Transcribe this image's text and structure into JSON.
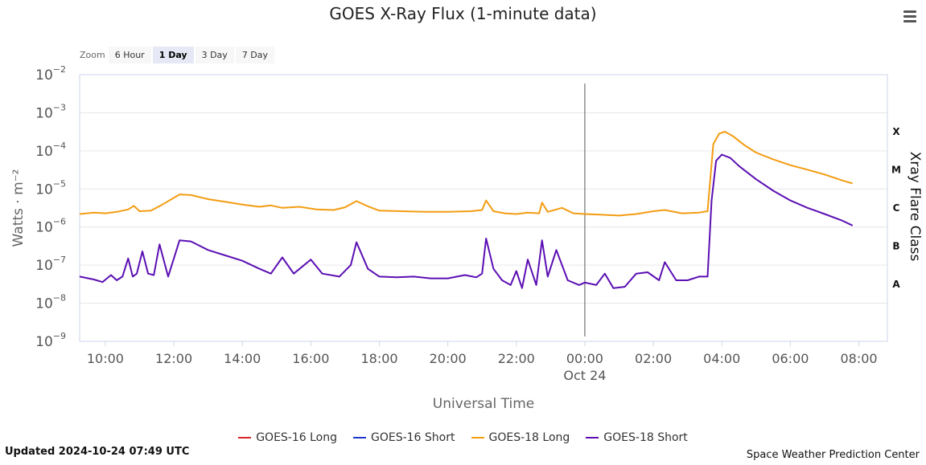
{
  "title": "GOES X-Ray Flux (1-minute data)",
  "menu": {
    "icon": "hamburger-menu-icon"
  },
  "zoom": {
    "label": "Zoom",
    "options": [
      "6 Hour",
      "1 Day",
      "3 Day",
      "7 Day"
    ],
    "selected": "1 Day"
  },
  "updated": "Updated 2024-10-24 07:49 UTC",
  "credit": "Space Weather Prediction Center",
  "chart_data": {
    "type": "line",
    "title": "GOES X-Ray Flux (1-minute data)",
    "xlabel": "Universal Time",
    "ylabel": "Watts · m⁻²",
    "ylabel_right": "Xray Flare Class",
    "yscale": "log",
    "ylim": [
      1e-09,
      0.01
    ],
    "xlim": [
      "2024-10-23 09:15",
      "2024-10-24 08:50"
    ],
    "x_ticks": [
      "10:00",
      "12:00",
      "14:00",
      "16:00",
      "18:00",
      "20:00",
      "22:00",
      "00:00",
      "02:00",
      "04:00",
      "06:00",
      "08:00"
    ],
    "x_tick_date": "Oct 24",
    "y_ticks": [
      {
        "value": 1e-09,
        "base": "10",
        "exp": "−9"
      },
      {
        "value": 1e-08,
        "base": "10",
        "exp": "−8"
      },
      {
        "value": 1e-07,
        "base": "10",
        "exp": "−7"
      },
      {
        "value": 1e-06,
        "base": "10",
        "exp": "−6"
      },
      {
        "value": 1e-05,
        "base": "10",
        "exp": "−5"
      },
      {
        "value": 0.0001,
        "base": "10",
        "exp": "−4"
      },
      {
        "value": 0.001,
        "base": "10",
        "exp": "−3"
      },
      {
        "value": 0.01,
        "base": "10",
        "exp": "−2"
      }
    ],
    "flare_classes": [
      {
        "label": "A",
        "value": 3.16e-08
      },
      {
        "label": "B",
        "value": 3.16e-07
      },
      {
        "label": "C",
        "value": 3.16e-06
      },
      {
        "label": "M",
        "value": 3.16e-05
      },
      {
        "label": "X",
        "value": 0.000316
      }
    ],
    "day_marker": "2024-10-24 00:00",
    "grid": true,
    "legend_position": "bottom",
    "series": [
      {
        "name": "GOES-16 Long",
        "color": "#d62728",
        "x": [],
        "y": []
      },
      {
        "name": "GOES-16 Short",
        "color": "#1f36c9",
        "x": [],
        "y": []
      },
      {
        "name": "GOES-18 Long",
        "color": "#f39c12",
        "x": [
          "2024-10-23 09:15",
          "2024-10-23 09:40",
          "2024-10-23 10:00",
          "2024-10-23 10:20",
          "2024-10-23 10:40",
          "2024-10-23 10:50",
          "2024-10-23 11:00",
          "2024-10-23 11:20",
          "2024-10-23 11:40",
          "2024-10-23 12:10",
          "2024-10-23 12:30",
          "2024-10-23 13:00",
          "2024-10-23 13:30",
          "2024-10-23 14:00",
          "2024-10-23 14:30",
          "2024-10-23 14:50",
          "2024-10-23 15:10",
          "2024-10-23 15:40",
          "2024-10-23 16:10",
          "2024-10-23 16:40",
          "2024-10-23 17:00",
          "2024-10-23 17:20",
          "2024-10-23 17:40",
          "2024-10-23 18:00",
          "2024-10-23 18:40",
          "2024-10-23 19:20",
          "2024-10-23 20:00",
          "2024-10-23 20:40",
          "2024-10-23 21:00",
          "2024-10-23 21:07",
          "2024-10-23 21:20",
          "2024-10-23 21:40",
          "2024-10-23 22:00",
          "2024-10-23 22:20",
          "2024-10-23 22:40",
          "2024-10-23 22:45",
          "2024-10-23 22:55",
          "2024-10-23 23:20",
          "2024-10-23 23:40",
          "2024-10-24 00:00",
          "2024-10-24 00:30",
          "2024-10-24 01:00",
          "2024-10-24 01:30",
          "2024-10-24 02:00",
          "2024-10-24 02:20",
          "2024-10-24 02:50",
          "2024-10-24 03:20",
          "2024-10-24 03:35",
          "2024-10-24 03:45",
          "2024-10-24 03:55",
          "2024-10-24 04:05",
          "2024-10-24 04:20",
          "2024-10-24 04:40",
          "2024-10-24 05:00",
          "2024-10-24 05:30",
          "2024-10-24 06:00",
          "2024-10-24 06:30",
          "2024-10-24 07:00",
          "2024-10-24 07:30",
          "2024-10-24 07:49"
        ],
        "y": [
          2.2e-06,
          2.4e-06,
          2.3e-06,
          2.5e-06,
          2.9e-06,
          3.6e-06,
          2.6e-06,
          2.7e-06,
          3.9e-06,
          7.2e-06,
          6.9e-06,
          5.4e-06,
          4.6e-06,
          3.9e-06,
          3.4e-06,
          3.7e-06,
          3.2e-06,
          3.4e-06,
          2.9e-06,
          2.8e-06,
          3.3e-06,
          4.8e-06,
          3.5e-06,
          2.7e-06,
          2.6e-06,
          2.5e-06,
          2.5e-06,
          2.6e-06,
          2.8e-06,
          5e-06,
          2.6e-06,
          2.3e-06,
          2.2e-06,
          2.4e-06,
          2.3e-06,
          4.4e-06,
          2.5e-06,
          3.2e-06,
          2.3e-06,
          2.2e-06,
          2.1e-06,
          2e-06,
          2.2e-06,
          2.6e-06,
          2.8e-06,
          2.3e-06,
          2.4e-06,
          2.6e-06,
          0.00015,
          0.00028,
          0.00032,
          0.00024,
          0.00014,
          9e-05,
          6e-05,
          4.2e-05,
          3.2e-05,
          2.4e-05,
          1.7e-05,
          1.4e-05
        ]
      },
      {
        "name": "GOES-18 Short",
        "color": "#5b0fb3",
        "x": [
          "2024-10-23 09:15",
          "2024-10-23 09:40",
          "2024-10-23 09:55",
          "2024-10-23 10:10",
          "2024-10-23 10:20",
          "2024-10-23 10:30",
          "2024-10-23 10:40",
          "2024-10-23 10:48",
          "2024-10-23 10:55",
          "2024-10-23 11:05",
          "2024-10-23 11:15",
          "2024-10-23 11:25",
          "2024-10-23 11:35",
          "2024-10-23 11:50",
          "2024-10-23 12:10",
          "2024-10-23 12:30",
          "2024-10-23 13:00",
          "2024-10-23 13:30",
          "2024-10-23 14:00",
          "2024-10-23 14:30",
          "2024-10-23 14:50",
          "2024-10-23 15:10",
          "2024-10-23 15:30",
          "2024-10-23 16:00",
          "2024-10-23 16:20",
          "2024-10-23 16:50",
          "2024-10-23 17:10",
          "2024-10-23 17:20",
          "2024-10-23 17:40",
          "2024-10-23 18:00",
          "2024-10-23 18:30",
          "2024-10-23 19:00",
          "2024-10-23 19:30",
          "2024-10-23 20:00",
          "2024-10-23 20:30",
          "2024-10-23 20:50",
          "2024-10-23 21:00",
          "2024-10-23 21:07",
          "2024-10-23 21:20",
          "2024-10-23 21:35",
          "2024-10-23 21:50",
          "2024-10-23 22:00",
          "2024-10-23 22:10",
          "2024-10-23 22:20",
          "2024-10-23 22:35",
          "2024-10-23 22:45",
          "2024-10-23 22:55",
          "2024-10-23 23:10",
          "2024-10-23 23:30",
          "2024-10-23 23:50",
          "2024-10-24 00:00",
          "2024-10-24 00:20",
          "2024-10-24 00:35",
          "2024-10-24 00:50",
          "2024-10-24 01:10",
          "2024-10-24 01:30",
          "2024-10-24 01:50",
          "2024-10-24 02:10",
          "2024-10-24 02:20",
          "2024-10-24 02:40",
          "2024-10-24 03:00",
          "2024-10-24 03:20",
          "2024-10-24 03:35",
          "2024-10-24 03:42",
          "2024-10-24 03:50",
          "2024-10-24 04:00",
          "2024-10-24 04:15",
          "2024-10-24 04:30",
          "2024-10-24 05:00",
          "2024-10-24 05:30",
          "2024-10-24 06:00",
          "2024-10-24 06:30",
          "2024-10-24 07:00",
          "2024-10-24 07:30",
          "2024-10-24 07:49"
        ],
        "y": [
          5e-08,
          4.2e-08,
          3.6e-08,
          5.5e-08,
          4e-08,
          5e-08,
          1.5e-07,
          5e-08,
          6e-08,
          2.3e-07,
          6e-08,
          5.5e-08,
          3.5e-07,
          5e-08,
          4.5e-07,
          4.2e-07,
          2.5e-07,
          1.8e-07,
          1.3e-07,
          8e-08,
          6e-08,
          1.6e-07,
          6e-08,
          1.4e-07,
          6e-08,
          5e-08,
          1e-07,
          4e-07,
          8e-08,
          5e-08,
          4.8e-08,
          5e-08,
          4.5e-08,
          4.5e-08,
          5.5e-08,
          4.8e-08,
          6e-08,
          5e-07,
          8e-08,
          4e-08,
          3e-08,
          7e-08,
          2.5e-08,
          1.4e-07,
          3e-08,
          4.5e-07,
          5e-08,
          2.5e-07,
          4e-08,
          3e-08,
          3.5e-08,
          3e-08,
          6e-08,
          2.5e-08,
          2.7e-08,
          6e-08,
          6.5e-08,
          4e-08,
          1.2e-07,
          4e-08,
          4e-08,
          5e-08,
          5e-08,
          5e-06,
          5.5e-05,
          8e-05,
          6.5e-05,
          4e-05,
          1.8e-05,
          9e-06,
          5e-06,
          3.2e-06,
          2.2e-06,
          1.5e-06,
          1.1e-06
        ]
      }
    ]
  }
}
